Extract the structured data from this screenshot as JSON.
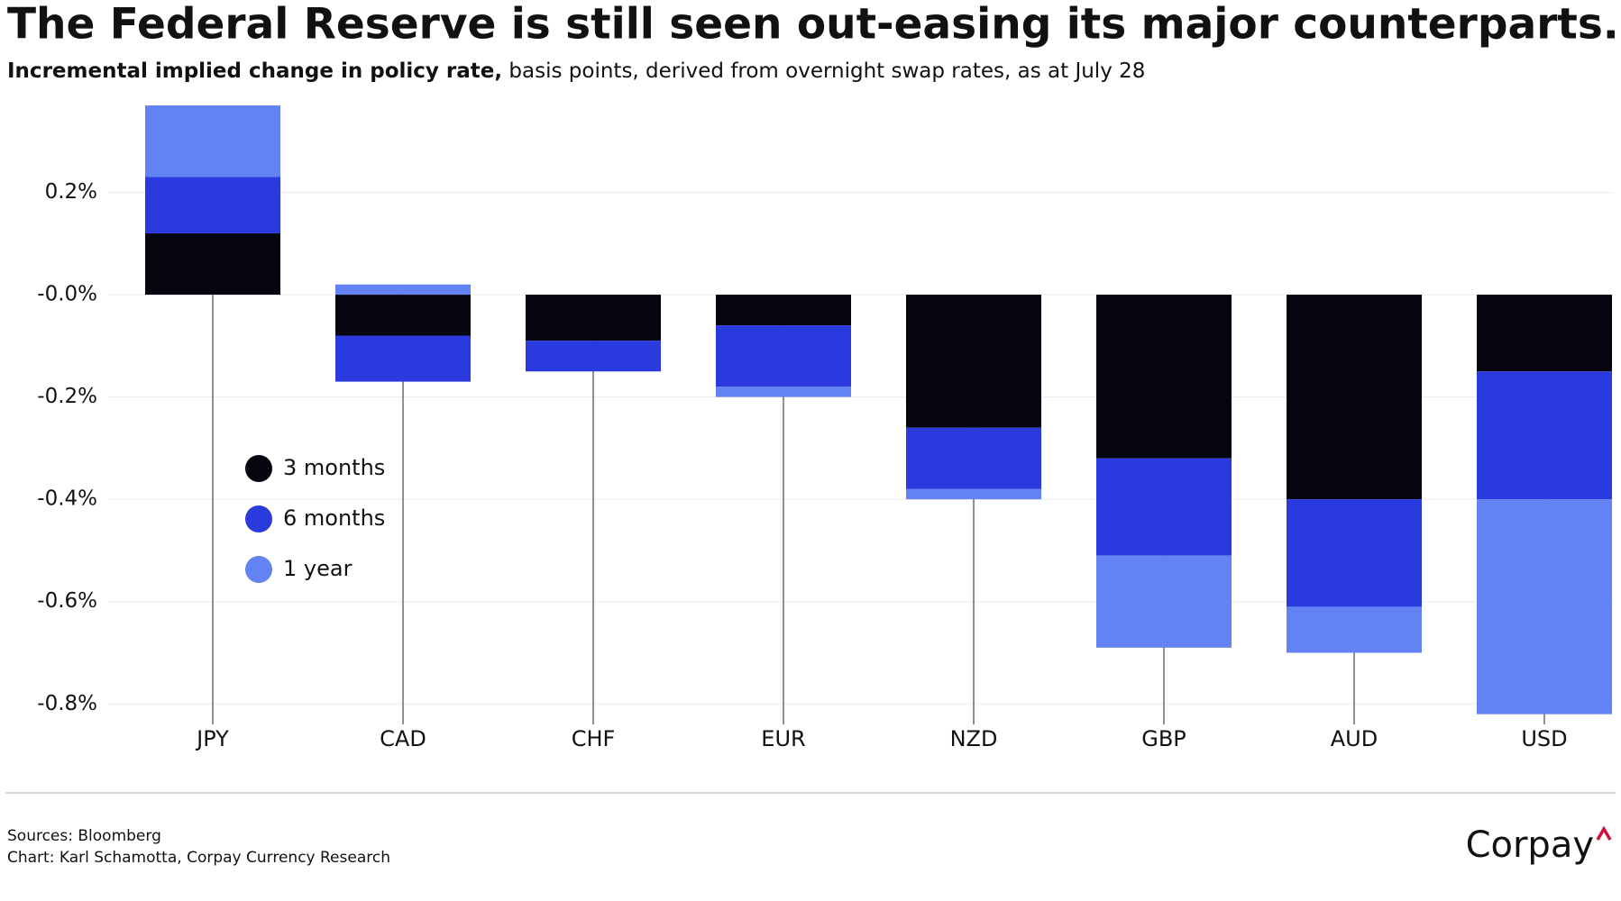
{
  "chart_data": {
    "type": "stacked-bar",
    "title": "The Federal Reserve is still seen out-easing its major counterparts.",
    "subtitle_lead": "Incremental implied change in policy rate,",
    "subtitle": "basis points, derived from overnight swap rates, as at July 28",
    "categories": [
      "JPY",
      "CAD",
      "CHF",
      "EUR",
      "NZD",
      "GBP",
      "AUD",
      "USD"
    ],
    "series": [
      {
        "name": "3 months",
        "color": "#05050f",
        "values": [
          0.12,
          -0.08,
          -0.09,
          -0.06,
          -0.26,
          -0.32,
          -0.4,
          -0.15
        ]
      },
      {
        "name": "6 months",
        "color": "#2a3ade",
        "values": [
          0.11,
          -0.09,
          -0.06,
          -0.12,
          -0.12,
          -0.19,
          -0.21,
          -0.25
        ]
      },
      {
        "name": "1 year",
        "color": "#6383f5",
        "values": [
          0.14,
          0.02,
          0,
          -0.02,
          -0.02,
          -0.18,
          -0.09,
          -0.42
        ]
      }
    ],
    "ylim": [
      -0.84,
      0.37
    ],
    "yticks": [
      {
        "value": 0.2,
        "label": "0.2%"
      },
      {
        "value": 0,
        "label": "-0.0%"
      },
      {
        "value": -0.2,
        "label": "-0.2%"
      },
      {
        "value": -0.4,
        "label": "-0.4%"
      },
      {
        "value": -0.6,
        "label": "-0.6%"
      },
      {
        "value": -0.8,
        "label": "-0.8%"
      }
    ],
    "grid": true,
    "legend": "left",
    "sources": "Sources: Bloomberg",
    "credit": "Chart: Karl Schamotta, Corpay Currency Research",
    "logo": "Corpay"
  }
}
